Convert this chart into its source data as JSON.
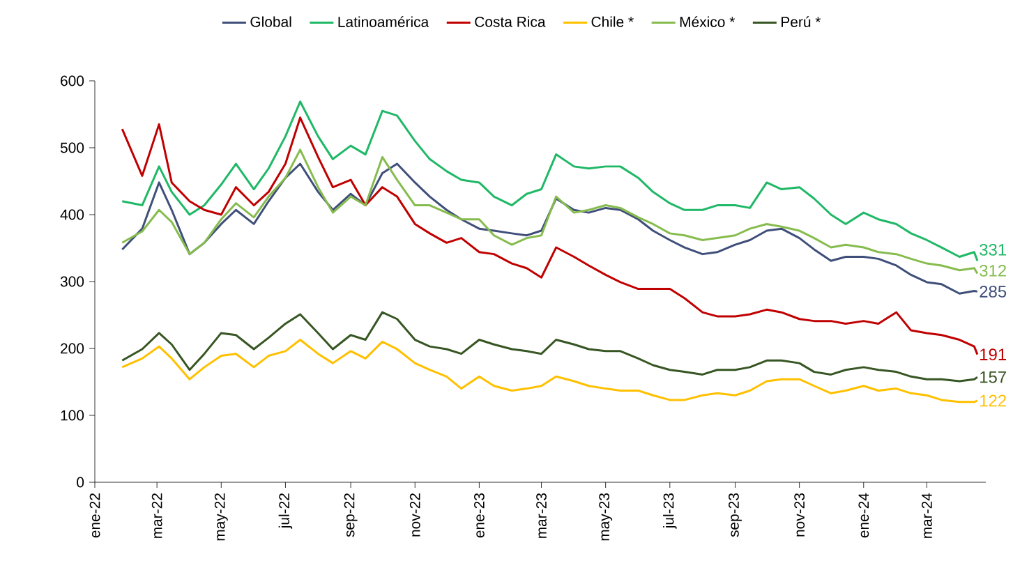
{
  "chart_data": {
    "type": "line",
    "x": [
      "2022-01-27",
      "2022-02-15",
      "2022-03-03",
      "2022-03-15",
      "2022-04-01",
      "2022-04-15",
      "2022-05-01",
      "2022-05-15",
      "2022-06-01",
      "2022-06-15",
      "2022-07-01",
      "2022-07-15",
      "2022-08-01",
      "2022-08-15",
      "2022-09-01",
      "2022-09-15",
      "2022-10-01",
      "2022-10-15",
      "2022-11-01",
      "2022-11-15",
      "2022-12-01",
      "2022-12-15",
      "2023-01-01",
      "2023-01-15",
      "2023-02-01",
      "2023-02-15",
      "2023-03-01",
      "2023-03-15",
      "2023-04-01",
      "2023-04-15",
      "2023-05-01",
      "2023-05-15",
      "2023-06-01",
      "2023-06-15",
      "2023-07-01",
      "2023-07-15",
      "2023-08-01",
      "2023-08-15",
      "2023-09-01",
      "2023-09-15",
      "2023-10-01",
      "2023-10-15",
      "2023-11-01",
      "2023-11-15",
      "2023-12-01",
      "2023-12-15",
      "2024-01-01",
      "2024-01-15",
      "2024-02-01",
      "2024-02-15",
      "2024-03-01",
      "2024-03-15",
      "2024-04-01",
      "2024-04-15",
      "2024-04-18"
    ],
    "series": [
      {
        "name": "Global",
        "color": "#3f4f7a",
        "values": [
          348,
          379,
          448,
          407,
          341,
          358,
          386,
          407,
          386,
          420,
          455,
          476,
          434,
          407,
          431,
          414,
          462,
          476,
          448,
          427,
          407,
          393,
          379,
          376,
          372,
          369,
          376,
          424,
          407,
          403,
          410,
          407,
          393,
          376,
          362,
          351,
          341,
          344,
          355,
          362,
          376,
          379,
          365,
          348,
          331,
          337,
          337,
          334,
          324,
          310,
          299,
          296,
          282,
          286,
          285
        ],
        "value_labels": [
          null,
          null,
          null,
          null,
          null,
          null,
          null,
          null,
          null,
          null,
          null,
          null,
          null,
          null,
          null,
          null,
          null,
          null,
          null,
          null,
          null,
          null,
          null,
          null,
          null,
          null,
          null,
          null,
          null,
          null,
          null,
          null,
          null,
          null,
          null,
          null,
          null,
          null,
          null,
          null,
          null,
          null,
          null,
          null,
          null,
          null,
          null,
          null,
          null,
          null,
          null,
          null,
          null,
          null,
          "285"
        ]
      },
      {
        "name": "Latinoamérica",
        "color": "#1fb866",
        "values": [
          420,
          414,
          472,
          434,
          400,
          414,
          445,
          476,
          438,
          469,
          517,
          569,
          517,
          483,
          503,
          490,
          555,
          548,
          510,
          483,
          465,
          452,
          448,
          427,
          414,
          431,
          438,
          490,
          472,
          469,
          472,
          472,
          455,
          434,
          417,
          407,
          407,
          414,
          414,
          410,
          448,
          438,
          441,
          424,
          400,
          386,
          403,
          393,
          386,
          372,
          362,
          351,
          337,
          344,
          331
        ],
        "value_labels": [
          null,
          null,
          null,
          null,
          null,
          null,
          null,
          null,
          null,
          null,
          null,
          null,
          null,
          null,
          null,
          null,
          null,
          null,
          null,
          null,
          null,
          null,
          null,
          null,
          null,
          null,
          null,
          null,
          null,
          null,
          null,
          null,
          null,
          null,
          null,
          null,
          null,
          null,
          null,
          null,
          null,
          null,
          null,
          null,
          null,
          null,
          null,
          null,
          null,
          null,
          null,
          null,
          null,
          null,
          "331"
        ]
      },
      {
        "name": "Costa Rica",
        "color": "#c00000",
        "values": [
          528,
          458,
          535,
          448,
          420,
          407,
          400,
          441,
          414,
          434,
          476,
          545,
          486,
          441,
          452,
          414,
          441,
          427,
          386,
          372,
          358,
          365,
          344,
          341,
          327,
          320,
          306,
          351,
          337,
          324,
          310,
          299,
          289,
          289,
          289,
          275,
          254,
          248,
          248,
          251,
          258,
          254,
          244,
          241,
          241,
          237,
          241,
          237,
          254,
          227,
          223,
          220,
          213,
          203,
          191
        ],
        "value_labels": [
          null,
          null,
          null,
          null,
          null,
          null,
          null,
          null,
          null,
          null,
          null,
          null,
          null,
          null,
          null,
          null,
          null,
          null,
          null,
          null,
          null,
          null,
          null,
          null,
          null,
          null,
          null,
          null,
          null,
          null,
          null,
          null,
          null,
          null,
          null,
          null,
          null,
          null,
          null,
          null,
          null,
          null,
          null,
          null,
          null,
          null,
          null,
          null,
          null,
          null,
          null,
          null,
          null,
          null,
          "191"
        ]
      },
      {
        "name": "Chile *",
        "color": "#ffc000",
        "values": [
          172,
          185,
          203,
          185,
          154,
          172,
          189,
          192,
          172,
          189,
          196,
          213,
          192,
          178,
          196,
          185,
          210,
          199,
          178,
          168,
          158,
          140,
          158,
          144,
          137,
          140,
          144,
          158,
          151,
          144,
          140,
          137,
          137,
          130,
          123,
          123,
          130,
          133,
          130,
          137,
          151,
          154,
          154,
          144,
          133,
          137,
          144,
          137,
          140,
          133,
          130,
          123,
          120,
          120,
          122
        ],
        "value_labels": [
          null,
          null,
          null,
          null,
          null,
          null,
          null,
          null,
          null,
          null,
          null,
          null,
          null,
          null,
          null,
          null,
          null,
          null,
          null,
          null,
          null,
          null,
          null,
          null,
          null,
          null,
          null,
          null,
          null,
          null,
          null,
          null,
          null,
          null,
          null,
          null,
          null,
          null,
          null,
          null,
          null,
          null,
          null,
          null,
          null,
          null,
          null,
          null,
          null,
          null,
          null,
          null,
          null,
          null,
          "122"
        ]
      },
      {
        "name": "México *",
        "color": "#86bc4e",
        "values": [
          358,
          375,
          407,
          389,
          341,
          358,
          393,
          417,
          396,
          427,
          455,
          497,
          441,
          403,
          427,
          414,
          486,
          452,
          414,
          414,
          403,
          393,
          393,
          369,
          355,
          365,
          369,
          427,
          403,
          407,
          414,
          410,
          396,
          386,
          372,
          369,
          362,
          365,
          369,
          379,
          386,
          382,
          376,
          365,
          351,
          355,
          351,
          344,
          341,
          334,
          327,
          324,
          317,
          320,
          312
        ],
        "value_labels": [
          null,
          null,
          null,
          null,
          null,
          null,
          null,
          null,
          null,
          null,
          null,
          null,
          null,
          null,
          null,
          null,
          null,
          null,
          null,
          null,
          null,
          null,
          null,
          null,
          null,
          null,
          null,
          null,
          null,
          null,
          null,
          null,
          null,
          null,
          null,
          null,
          null,
          null,
          null,
          null,
          null,
          null,
          null,
          null,
          null,
          null,
          null,
          null,
          null,
          null,
          null,
          null,
          null,
          null,
          "312"
        ]
      },
      {
        "name": "Perú *",
        "color": "#375623",
        "values": [
          182,
          199,
          223,
          206,
          168,
          192,
          223,
          220,
          199,
          216,
          237,
          251,
          223,
          199,
          220,
          213,
          254,
          244,
          213,
          203,
          199,
          192,
          213,
          206,
          199,
          196,
          192,
          213,
          206,
          199,
          196,
          196,
          185,
          175,
          168,
          165,
          161,
          168,
          168,
          172,
          182,
          182,
          178,
          165,
          161,
          168,
          172,
          168,
          165,
          158,
          154,
          154,
          151,
          154,
          157
        ],
        "value_labels": [
          null,
          null,
          null,
          null,
          null,
          null,
          null,
          null,
          null,
          null,
          null,
          null,
          null,
          null,
          null,
          null,
          null,
          null,
          null,
          null,
          null,
          null,
          null,
          null,
          null,
          null,
          null,
          null,
          null,
          null,
          null,
          null,
          null,
          null,
          null,
          null,
          null,
          null,
          null,
          null,
          null,
          null,
          null,
          null,
          null,
          null,
          null,
          null,
          null,
          null,
          null,
          null,
          null,
          null,
          "157"
        ]
      }
    ],
    "xlim": [
      "2022-01-01",
      "2024-04-26"
    ],
    "xticks": [
      {
        "value": "2022-01-01",
        "label": "ene-22"
      },
      {
        "value": "2022-03-01",
        "label": "mar-22"
      },
      {
        "value": "2022-05-01",
        "label": "may-22"
      },
      {
        "value": "2022-07-01",
        "label": "jul-22"
      },
      {
        "value": "2022-09-01",
        "label": "sep-22"
      },
      {
        "value": "2022-11-01",
        "label": "nov-22"
      },
      {
        "value": "2023-01-01",
        "label": "ene-23"
      },
      {
        "value": "2023-03-01",
        "label": "mar-23"
      },
      {
        "value": "2023-05-01",
        "label": "may-23"
      },
      {
        "value": "2023-07-01",
        "label": "jul-23"
      },
      {
        "value": "2023-09-01",
        "label": "sep-23"
      },
      {
        "value": "2023-11-01",
        "label": "nov-23"
      },
      {
        "value": "2024-01-01",
        "label": "ene-24"
      },
      {
        "value": "2024-03-01",
        "label": "mar-24"
      }
    ],
    "ylim": [
      0,
      600
    ],
    "yticks": [
      0,
      100,
      200,
      300,
      400,
      500,
      600
    ],
    "grid": false,
    "legend": "top",
    "marker": "none",
    "line_style": "solid"
  }
}
